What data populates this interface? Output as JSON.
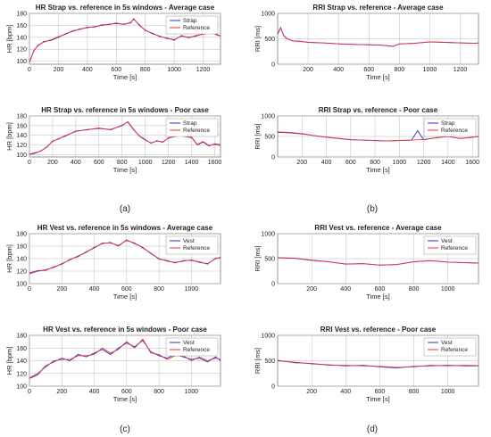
{
  "figure": {
    "captions": [
      "(a)",
      "(b)",
      "(c)",
      "(d)"
    ]
  },
  "colors": {
    "device": "#2b2bd9",
    "reference": "#e83535",
    "grid": "#bdbdbd",
    "axis": "#7a7a7a",
    "text": "#222222"
  },
  "chart_data": [
    {
      "type": "line",
      "title": "HR Strap vs. reference in 5s windows - Average case",
      "xlabel": "Time [s]",
      "ylabel": "HR [bpm]",
      "xlim": [
        0,
        1320
      ],
      "ylim": [
        95,
        180
      ],
      "xticks": [
        0,
        200,
        400,
        600,
        800,
        1000,
        1200
      ],
      "yticks": [
        100,
        120,
        140,
        160,
        180
      ],
      "grid": true,
      "legend_position": "top-right",
      "series": [
        {
          "name": "Strap",
          "x": [
            0,
            30,
            60,
            100,
            150,
            200,
            250,
            300,
            350,
            400,
            450,
            500,
            550,
            600,
            650,
            700,
            720,
            760,
            800,
            850,
            900,
            950,
            1000,
            1050,
            1100,
            1150,
            1200,
            1250,
            1300,
            1320
          ],
          "values": [
            98,
            118,
            126,
            133,
            135,
            140,
            146,
            150,
            154,
            156,
            158,
            160,
            162,
            163,
            162,
            164,
            171,
            160,
            152,
            146,
            142,
            138,
            136,
            142,
            140,
            142,
            146,
            148,
            144,
            142
          ]
        },
        {
          "name": "Reference",
          "x": [
            0,
            30,
            60,
            100,
            150,
            200,
            250,
            300,
            350,
            400,
            450,
            500,
            550,
            600,
            650,
            700,
            720,
            760,
            800,
            850,
            900,
            950,
            1000,
            1050,
            1100,
            1150,
            1200,
            1250,
            1300,
            1320
          ],
          "values": [
            99,
            117,
            127,
            132,
            136,
            141,
            145,
            151,
            153,
            157,
            157,
            161,
            161,
            164,
            161,
            165,
            170,
            161,
            151,
            147,
            141,
            139,
            135,
            143,
            139,
            143,
            145,
            149,
            143,
            143
          ]
        }
      ]
    },
    {
      "type": "line",
      "title": "RRI Strap vs. reference - Average case",
      "xlabel": "Time [s]",
      "ylabel": "RRI [ms]",
      "xlim": [
        0,
        1320
      ],
      "ylim": [
        0,
        1000
      ],
      "xticks": [
        200,
        400,
        600,
        800,
        1000,
        1200
      ],
      "yticks": [
        0,
        500,
        1000
      ],
      "grid": true,
      "legend_position": "none",
      "series": [
        {
          "name": "Strap",
          "x": [
            0,
            20,
            40,
            60,
            100,
            150,
            200,
            300,
            400,
            500,
            600,
            650,
            700,
            760,
            800,
            900,
            1000,
            1100,
            1200,
            1300,
            1320
          ],
          "values": [
            600,
            720,
            560,
            500,
            460,
            450,
            430,
            420,
            400,
            390,
            380,
            380,
            370,
            350,
            400,
            410,
            440,
            430,
            420,
            410,
            420
          ]
        },
        {
          "name": "Reference",
          "x": [
            0,
            20,
            40,
            60,
            100,
            150,
            200,
            300,
            400,
            500,
            600,
            650,
            700,
            760,
            800,
            900,
            1000,
            1100,
            1200,
            1300,
            1320
          ],
          "values": [
            590,
            710,
            570,
            505,
            455,
            448,
            432,
            418,
            402,
            392,
            382,
            378,
            372,
            352,
            398,
            412,
            438,
            432,
            418,
            412,
            418
          ]
        }
      ]
    },
    {
      "type": "line",
      "title": "HR Strap vs. reference in 5s windows - Poor case",
      "xlabel": "Time [s]",
      "ylabel": "HR [bpm]",
      "xlim": [
        0,
        1650
      ],
      "ylim": [
        95,
        180
      ],
      "xticks": [
        0,
        200,
        400,
        600,
        800,
        1000,
        1200,
        1400,
        1600
      ],
      "yticks": [
        100,
        120,
        140,
        160,
        180
      ],
      "grid": true,
      "legend_position": "top-right",
      "series": [
        {
          "name": "Strap",
          "x": [
            0,
            50,
            100,
            150,
            200,
            250,
            300,
            400,
            500,
            600,
            700,
            800,
            850,
            900,
            950,
            1000,
            1050,
            1100,
            1150,
            1200,
            1300,
            1400,
            1450,
            1500,
            1550,
            1600,
            1650
          ],
          "values": [
            100,
            103,
            108,
            115,
            128,
            132,
            138,
            148,
            152,
            154,
            152,
            160,
            168,
            152,
            138,
            130,
            124,
            128,
            126,
            134,
            140,
            136,
            120,
            126,
            118,
            122,
            120
          ]
        },
        {
          "name": "Reference",
          "x": [
            0,
            50,
            100,
            150,
            200,
            250,
            300,
            400,
            500,
            600,
            700,
            800,
            850,
            900,
            950,
            1000,
            1050,
            1100,
            1150,
            1200,
            1300,
            1400,
            1450,
            1500,
            1550,
            1600,
            1650
          ],
          "values": [
            101,
            104,
            107,
            116,
            127,
            133,
            137,
            149,
            151,
            155,
            151,
            161,
            167,
            151,
            139,
            131,
            123,
            129,
            125,
            135,
            139,
            135,
            121,
            127,
            119,
            121,
            119
          ]
        }
      ]
    },
    {
      "type": "line",
      "title": "RRI Strap vs. reference - Poor case",
      "xlabel": "Time [s]",
      "ylabel": "RRI [ms]",
      "xlim": [
        0,
        1650
      ],
      "ylim": [
        0,
        1000
      ],
      "xticks": [
        200,
        400,
        600,
        800,
        1000,
        1200,
        1400,
        1600
      ],
      "yticks": [
        0,
        500,
        1000
      ],
      "grid": true,
      "legend_position": "top-right",
      "series": [
        {
          "name": "Strap",
          "x": [
            0,
            100,
            200,
            300,
            400,
            500,
            600,
            700,
            800,
            900,
            1000,
            1100,
            1150,
            1200,
            1300,
            1400,
            1500,
            1600,
            1650
          ],
          "values": [
            600,
            590,
            560,
            520,
            480,
            450,
            420,
            410,
            400,
            390,
            400,
            410,
            640,
            420,
            470,
            500,
            450,
            480,
            500
          ]
        },
        {
          "name": "Reference",
          "x": [
            0,
            100,
            200,
            300,
            400,
            500,
            600,
            700,
            800,
            900,
            1000,
            1100,
            1150,
            1200,
            1300,
            1400,
            1500,
            1600,
            1650
          ],
          "values": [
            610,
            600,
            570,
            520,
            485,
            455,
            425,
            408,
            398,
            392,
            402,
            408,
            420,
            425,
            468,
            498,
            452,
            478,
            498
          ]
        }
      ]
    },
    {
      "type": "line",
      "title": "HR Vest vs. reference in 5s windows - Average case",
      "xlabel": "Time [s]",
      "ylabel": "HR [bpm]",
      "xlim": [
        0,
        1180
      ],
      "ylim": [
        100,
        180
      ],
      "xticks": [
        0,
        200,
        400,
        600,
        800,
        1000
      ],
      "yticks": [
        100,
        120,
        140,
        160,
        180
      ],
      "grid": true,
      "legend_position": "top-right",
      "series": [
        {
          "name": "Vest",
          "x": [
            0,
            50,
            100,
            150,
            200,
            250,
            300,
            350,
            400,
            450,
            500,
            550,
            600,
            650,
            700,
            750,
            800,
            850,
            900,
            950,
            1000,
            1050,
            1100,
            1150,
            1180
          ],
          "values": [
            116,
            120,
            122,
            126,
            132,
            138,
            144,
            150,
            158,
            164,
            166,
            160,
            170,
            164,
            158,
            148,
            140,
            136,
            134,
            136,
            138,
            134,
            132,
            140,
            142
          ]
        },
        {
          "name": "Reference",
          "x": [
            0,
            50,
            100,
            150,
            200,
            250,
            300,
            350,
            400,
            450,
            500,
            550,
            600,
            650,
            700,
            750,
            800,
            850,
            900,
            950,
            1000,
            1050,
            1100,
            1150,
            1180
          ],
          "values": [
            117,
            121,
            121,
            127,
            131,
            139,
            143,
            151,
            157,
            165,
            165,
            161,
            169,
            165,
            157,
            149,
            139,
            137,
            133,
            137,
            137,
            135,
            131,
            141,
            141
          ]
        }
      ]
    },
    {
      "type": "line",
      "title": "RRI Vest vs. reference - Average case",
      "xlabel": "Time [s]",
      "ylabel": "RRI [ms]",
      "xlim": [
        0,
        1180
      ],
      "ylim": [
        0,
        1000
      ],
      "xticks": [
        200,
        400,
        600,
        800,
        1000
      ],
      "yticks": [
        0,
        500,
        1000
      ],
      "grid": true,
      "legend_position": "top-right",
      "series": [
        {
          "name": "Vest",
          "x": [
            0,
            100,
            200,
            300,
            400,
            500,
            600,
            700,
            800,
            900,
            1000,
            1100,
            1180
          ],
          "values": [
            520,
            510,
            470,
            440,
            390,
            400,
            370,
            380,
            440,
            460,
            430,
            420,
            410
          ]
        },
        {
          "name": "Reference",
          "x": [
            0,
            100,
            200,
            300,
            400,
            500,
            600,
            700,
            800,
            900,
            1000,
            1100,
            1180
          ],
          "values": [
            515,
            505,
            465,
            438,
            392,
            398,
            372,
            382,
            438,
            458,
            432,
            418,
            412
          ]
        }
      ]
    },
    {
      "type": "line",
      "title": "HR Vest vs. reference in 5s windows - Poor case",
      "xlabel": "Time [s]",
      "ylabel": "HR [bpm]",
      "xlim": [
        0,
        1180
      ],
      "ylim": [
        100,
        180
      ],
      "xticks": [
        0,
        200,
        400,
        600,
        800,
        1000
      ],
      "yticks": [
        100,
        120,
        140,
        160,
        180
      ],
      "grid": true,
      "legend_position": "top-right",
      "series": [
        {
          "name": "Vest",
          "x": [
            0,
            50,
            100,
            150,
            200,
            250,
            300,
            350,
            400,
            450,
            500,
            550,
            600,
            650,
            700,
            750,
            800,
            850,
            900,
            950,
            1000,
            1050,
            1100,
            1150,
            1180
          ],
          "values": [
            112,
            118,
            132,
            138,
            144,
            140,
            150,
            146,
            152,
            158,
            150,
            160,
            168,
            162,
            172,
            154,
            148,
            144,
            150,
            146,
            142,
            144,
            138,
            146,
            140
          ]
        },
        {
          "name": "Reference",
          "x": [
            0,
            50,
            100,
            150,
            200,
            250,
            300,
            350,
            400,
            450,
            500,
            550,
            600,
            650,
            700,
            750,
            800,
            850,
            900,
            950,
            1000,
            1050,
            1100,
            1150,
            1180
          ],
          "values": [
            113,
            120,
            130,
            140,
            142,
            142,
            148,
            148,
            150,
            160,
            152,
            158,
            170,
            160,
            174,
            152,
            150,
            142,
            148,
            148,
            140,
            146,
            140,
            144,
            142
          ]
        }
      ]
    },
    {
      "type": "line",
      "title": "RRI Vest vs. reference - Poor case",
      "xlabel": "Time [s]",
      "ylabel": "RRI [ms]",
      "xlim": [
        0,
        1180
      ],
      "ylim": [
        0,
        1000
      ],
      "xticks": [
        200,
        400,
        600,
        800,
        1000
      ],
      "yticks": [
        0,
        500,
        1000
      ],
      "grid": true,
      "legend_position": "top-right",
      "series": [
        {
          "name": "Vest",
          "x": [
            0,
            100,
            200,
            300,
            400,
            500,
            600,
            700,
            800,
            900,
            1000,
            1100,
            1180
          ],
          "values": [
            500,
            470,
            440,
            420,
            400,
            410,
            380,
            360,
            390,
            400,
            410,
            400,
            400
          ]
        },
        {
          "name": "Reference",
          "x": [
            0,
            100,
            200,
            300,
            400,
            500,
            600,
            700,
            800,
            900,
            1000,
            1100,
            1180
          ],
          "values": [
            510,
            460,
            450,
            410,
            410,
            400,
            390,
            370,
            380,
            410,
            400,
            410,
            405
          ]
        }
      ]
    }
  ]
}
